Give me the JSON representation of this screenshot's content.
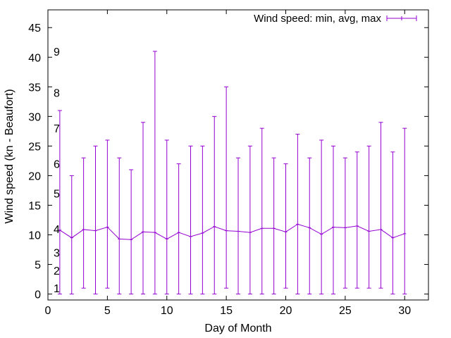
{
  "chart_data": {
    "type": "errorbar-line",
    "xlabel": "Day of Month",
    "ylabel": "Wind speed (kn - Beaufort)",
    "xlim": [
      0,
      32
    ],
    "ylim": [
      -1,
      48
    ],
    "xticks": [
      0,
      5,
      10,
      15,
      20,
      25,
      30
    ],
    "yticks": [
      0,
      5,
      10,
      15,
      20,
      25,
      30,
      35,
      40,
      45
    ],
    "grid": false,
    "legend_position": "top-right",
    "series": [
      {
        "name": "Wind speed: min, avg, max",
        "color": "#9400d3",
        "x": [
          1,
          2,
          3,
          4,
          5,
          6,
          7,
          8,
          9,
          10,
          11,
          12,
          13,
          14,
          15,
          16,
          17,
          18,
          19,
          20,
          21,
          22,
          23,
          24,
          25,
          26,
          27,
          28,
          29,
          30
        ],
        "avg": [
          10.8,
          9.5,
          10.9,
          10.7,
          11.3,
          9.3,
          9.2,
          10.5,
          10.4,
          9.3,
          10.4,
          9.7,
          10.3,
          11.4,
          10.7,
          10.6,
          10.4,
          11.1,
          11.1,
          10.5,
          11.8,
          11.2,
          10.1,
          11.3,
          11.2,
          11.5,
          10.6,
          10.9,
          9.5,
          10.2
        ],
        "min": [
          0,
          0,
          1,
          0,
          1,
          0,
          0,
          0,
          0,
          0,
          0,
          0,
          0,
          0,
          1,
          0,
          0,
          0,
          0,
          1,
          0,
          0,
          0,
          0,
          1,
          1,
          1,
          1,
          0,
          0
        ],
        "max": [
          31,
          20,
          23,
          25,
          26,
          23,
          21,
          29,
          41,
          26,
          22,
          25,
          25,
          30,
          35,
          23,
          25,
          28,
          23,
          22,
          27,
          23,
          26,
          25,
          23,
          24,
          25,
          29,
          24,
          28
        ]
      }
    ],
    "annotations": [
      {
        "text": "1",
        "y": 1
      },
      {
        "text": "2",
        "y": 4
      },
      {
        "text": "3",
        "y": 7
      },
      {
        "text": "4",
        "y": 11
      },
      {
        "text": "5",
        "y": 17
      },
      {
        "text": "6",
        "y": 22
      },
      {
        "text": "7",
        "y": 28
      },
      {
        "text": "8",
        "y": 34
      },
      {
        "text": "9",
        "y": 41
      }
    ]
  }
}
